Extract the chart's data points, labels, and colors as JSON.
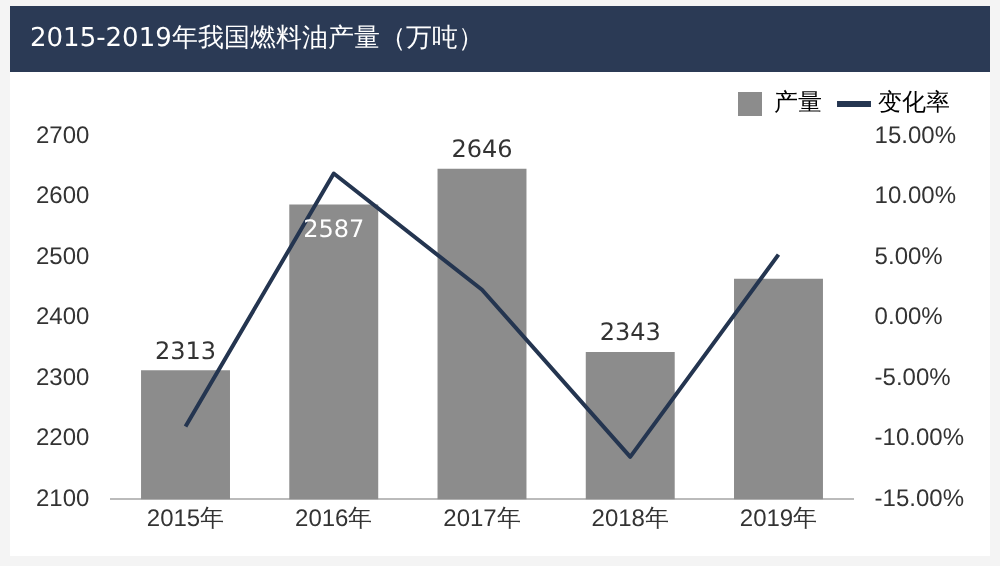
{
  "chart_data": {
    "type": "bar",
    "title": "2015-2019年我国燃料油产量（万吨）",
    "categories": [
      "2015年",
      "2016年",
      "2017年",
      "2018年",
      "2019年"
    ],
    "series": [
      {
        "name": "产量",
        "color": "#8c8c8c",
        "values": [
          2313,
          2587,
          2646,
          2343,
          2464
        ],
        "value_labels": [
          "2313",
          "2587",
          "2646",
          "2343",
          null
        ]
      },
      {
        "name": "变化率",
        "type": "line",
        "axis": "y2",
        "color": "#243550",
        "values": [
          -9.0,
          11.9,
          2.3,
          -11.5,
          5.2
        ]
      }
    ],
    "ylim": [
      2100,
      2700
    ],
    "yticks": [
      2100,
      2200,
      2300,
      2400,
      2500,
      2600,
      2700
    ],
    "y2lim": [
      -15,
      15
    ],
    "y2ticks": [
      {
        "value": -15,
        "label": "-15.00%"
      },
      {
        "value": -10,
        "label": "-10.00%"
      },
      {
        "value": -5,
        "label": "-5.00%"
      },
      {
        "value": 0,
        "label": "0.00%"
      },
      {
        "value": 5,
        "label": "5.00%"
      },
      {
        "value": 10,
        "label": "10.00%"
      },
      {
        "value": 15,
        "label": "15.00%"
      }
    ],
    "grid": false,
    "legend": "top right",
    "marker": "none",
    "line_style": "solid"
  }
}
